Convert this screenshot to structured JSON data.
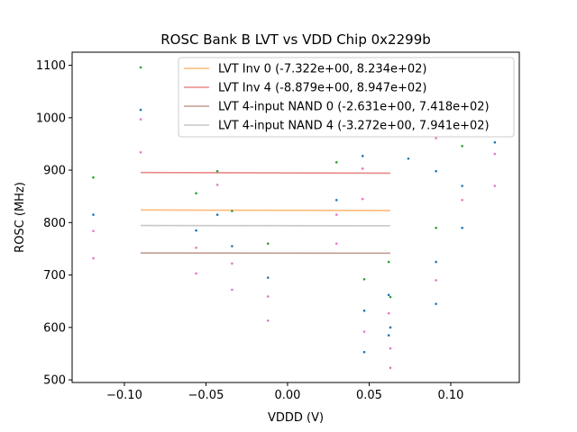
{
  "chart_data": {
    "type": "scatter",
    "title": "ROSC Bank B LVT vs VDD Chip 0x2299b",
    "xlabel": "VDDD (V)",
    "ylabel": "ROSC (MHz)",
    "xlim": [
      -0.132,
      0.142
    ],
    "ylim": [
      495,
      1125
    ],
    "xticks": [
      -0.1,
      -0.05,
      0.0,
      0.05,
      0.1
    ],
    "xtick_labels": [
      "−0.10",
      "−0.05",
      "0.00",
      "0.05",
      "0.10"
    ],
    "yticks": [
      500,
      600,
      700,
      800,
      900,
      1000,
      1100
    ],
    "ytick_labels": [
      "500",
      "600",
      "700",
      "800",
      "900",
      "1000",
      "1100"
    ],
    "legend_position": "top-right",
    "fit_lines": [
      {
        "name": "LVT Inv 0 (-7.322e+00, 8.234e+02)",
        "color": "#ffbb78",
        "slope": -7.322,
        "intercept": 823.4,
        "x_range": [
          -0.09,
          0.063
        ]
      },
      {
        "name": "LVT Inv 4 (-8.879e+00, 8.947e+02)",
        "color": "#e8898a",
        "slope": -8.879,
        "intercept": 894.7,
        "x_range": [
          -0.09,
          0.063
        ]
      },
      {
        "name": "LVT 4-input NAND 0 (-2.631e+00, 7.418e+02)",
        "color": "#c49c94",
        "slope": -2.631,
        "intercept": 741.8,
        "x_range": [
          -0.09,
          0.063
        ]
      },
      {
        "name": "LVT 4-input NAND 4 (-3.272e+00, 7.941e+02)",
        "color": "#c7c7c7",
        "slope": -3.272,
        "intercept": 794.1,
        "x_range": [
          -0.09,
          0.063
        ]
      }
    ],
    "scatter_series": [
      {
        "name": "blue",
        "color": "#1f77b4",
        "points": [
          [
            -0.119,
            815
          ],
          [
            -0.09,
            1015
          ],
          [
            -0.056,
            785
          ],
          [
            -0.043,
            815
          ],
          [
            -0.034,
            755
          ],
          [
            -0.012,
            695
          ],
          [
            0.03,
            843
          ],
          [
            0.046,
            927
          ],
          [
            0.047,
            632
          ],
          [
            0.047,
            553
          ],
          [
            0.062,
            662
          ],
          [
            0.063,
            600
          ],
          [
            0.062,
            585
          ],
          [
            0.074,
            922
          ],
          [
            0.091,
            898
          ],
          [
            0.091,
            725
          ],
          [
            0.091,
            645
          ],
          [
            0.107,
            870
          ],
          [
            0.107,
            790
          ],
          [
            0.127,
            953
          ]
        ]
      },
      {
        "name": "green",
        "color": "#2ca02c",
        "points": [
          [
            -0.119,
            886
          ],
          [
            -0.09,
            1096
          ],
          [
            -0.056,
            856
          ],
          [
            -0.043,
            898
          ],
          [
            -0.034,
            822
          ],
          [
            -0.012,
            760
          ],
          [
            0.03,
            915
          ],
          [
            0.047,
            692
          ],
          [
            0.062,
            725
          ],
          [
            0.063,
            658
          ],
          [
            0.091,
            790
          ],
          [
            0.107,
            946
          ]
        ]
      },
      {
        "name": "pink",
        "color": "#e377c2",
        "points": [
          [
            -0.119,
            784
          ],
          [
            -0.119,
            732
          ],
          [
            -0.09,
            997
          ],
          [
            -0.09,
            934
          ],
          [
            -0.056,
            752
          ],
          [
            -0.056,
            703
          ],
          [
            -0.043,
            872
          ],
          [
            -0.034,
            722
          ],
          [
            -0.034,
            672
          ],
          [
            -0.012,
            659
          ],
          [
            -0.012,
            613
          ],
          [
            0.03,
            815
          ],
          [
            0.03,
            760
          ],
          [
            0.046,
            903
          ],
          [
            0.046,
            845
          ],
          [
            0.047,
            592
          ],
          [
            0.062,
            627
          ],
          [
            0.063,
            560
          ],
          [
            0.063,
            523
          ],
          [
            0.091,
            961
          ],
          [
            0.091,
            690
          ],
          [
            0.107,
            843
          ],
          [
            0.127,
            931
          ],
          [
            0.127,
            870
          ]
        ]
      }
    ]
  }
}
